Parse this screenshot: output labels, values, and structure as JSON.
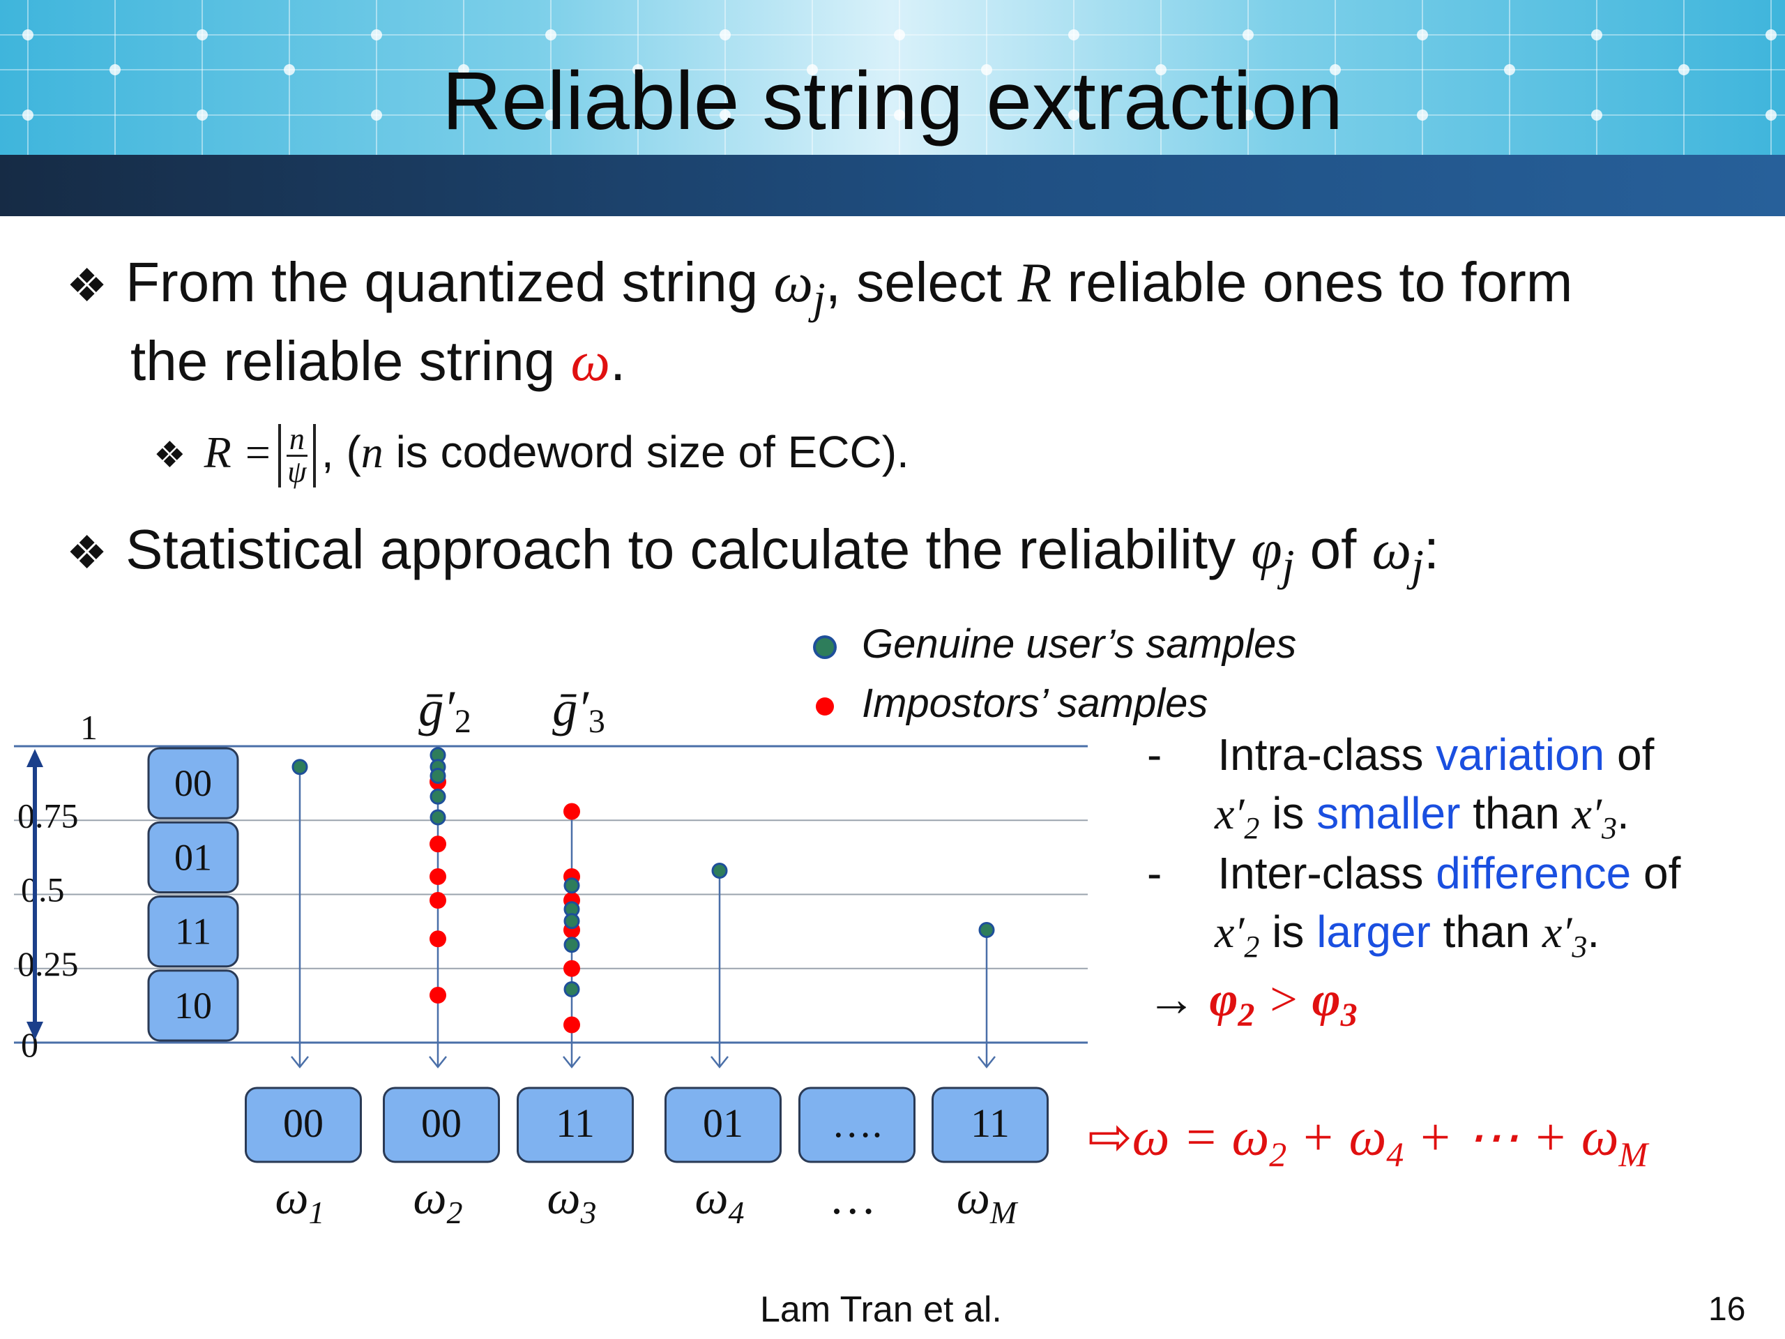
{
  "title": "Reliable string extraction",
  "bullets": [
    {
      "pre": "From the quantized string ",
      "sym1": "ω",
      "sub1": "j",
      "mid": ", select ",
      "sym2": "R",
      "post": " reliable ones to form",
      "line2_pre": "the reliable string ",
      "line2_sym": "ω",
      "line2_post": "."
    },
    {
      "pre": "Statistical approach to calculate the reliability ",
      "sym1": "φ",
      "sub1": "j",
      "mid": " of ",
      "sym2": "ω",
      "sub2": "j",
      "post": ":"
    }
  ],
  "sub_bullet": {
    "lhs": "R =",
    "frac_num": "n",
    "frac_den": "ψ",
    "post_pre": ", (",
    "post_sym": "n",
    "post_text": " is codeword size of ECC)."
  },
  "legend": {
    "genuine": "Genuine user’s samples",
    "impostor": "Impostors’ samples"
  },
  "colors": {
    "genuine_dot": "#2e7d5b",
    "genuine_ring": "#1e4f9a",
    "impostor_dot": "#ff0000",
    "box_fill": "#7fb2f0",
    "line": "#4a6fa8",
    "result_red": "#e01010",
    "accent_blue": "#1a4fe0"
  },
  "chart_data": {
    "type": "scatter",
    "ylim": [
      0,
      1
    ],
    "ytick_labels": [
      "1",
      "0.75",
      "0.5",
      "0.25",
      "0"
    ],
    "ytick_values": [
      1,
      0.75,
      0.5,
      0.25,
      0
    ],
    "interval_codes": [
      "00",
      "01",
      "11",
      "10"
    ],
    "column_headers": [
      {
        "label": "ḡ′",
        "sub": "2"
      },
      {
        "label": "ḡ′",
        "sub": "3"
      }
    ],
    "columns": [
      {
        "name": "ω1",
        "base": "ω",
        "sub": "1",
        "code": "00",
        "genuine": [
          0.93
        ],
        "impostor": []
      },
      {
        "name": "ω2",
        "base": "ω",
        "sub": "2",
        "code": "00",
        "genuine": [
          0.97,
          0.93,
          0.9,
          0.83,
          0.76
        ],
        "impostor": [
          0.88,
          0.67,
          0.56,
          0.48,
          0.35,
          0.16
        ]
      },
      {
        "name": "ω3",
        "base": "ω",
        "sub": "3",
        "code": "11",
        "genuine": [
          0.53,
          0.45,
          0.41,
          0.33,
          0.18
        ],
        "impostor": [
          0.78,
          0.56,
          0.48,
          0.38,
          0.25,
          0.06
        ]
      },
      {
        "name": "ω4",
        "base": "ω",
        "sub": "4",
        "code": "01",
        "genuine": [
          0.58
        ],
        "impostor": []
      },
      {
        "name": "…",
        "base": "…",
        "sub": "",
        "code": "….",
        "genuine": [],
        "impostor": []
      },
      {
        "name": "ωM",
        "base": "ω",
        "sub": "M",
        "code": "11",
        "genuine": [
          0.38
        ],
        "impostor": []
      }
    ]
  },
  "notes": [
    {
      "dash": "-",
      "a": "Intra-class ",
      "b": "variation",
      "c": " of"
    },
    {
      "sym": "x′",
      "sub": "2",
      "a": " is ",
      "b": "smaller",
      "c": " than ",
      "sym2": "x′",
      "sub2": "3",
      "d": "."
    },
    {
      "dash": "-",
      "a": "Inter-class ",
      "b": "difference",
      "c": " of"
    },
    {
      "sym": "x′",
      "sub": "2",
      "a": " is ",
      "b": "larger",
      "c": " than ",
      "sym2": "x′",
      "sub2": "3",
      "d": "."
    }
  ],
  "conclusion": {
    "arrow": "→",
    "lhs": "φ",
    "lhs_sub": "2",
    "op": " > ",
    "rhs": "φ",
    "rhs_sub": "3"
  },
  "result": {
    "arrow": "⇨",
    "text_pre": "ω = ω",
    "s1": "2",
    "mid1": " + ω",
    "s2": "4",
    "mid2": " + ⋯ + ω",
    "s3": "M"
  },
  "footer": {
    "author": "Lam Tran et al.",
    "page": "16"
  }
}
